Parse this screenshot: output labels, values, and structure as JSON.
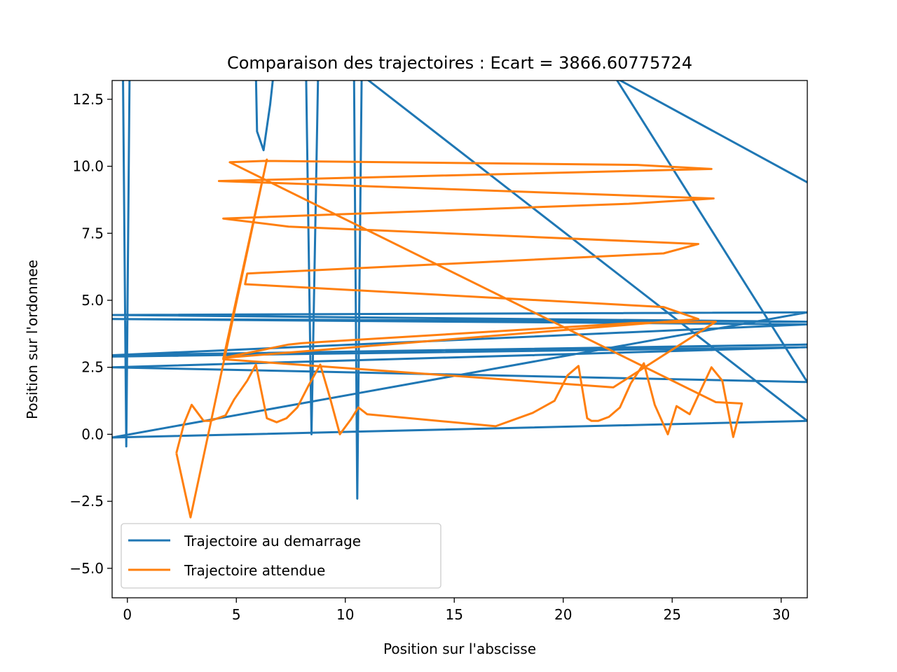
{
  "chart_data": {
    "type": "line",
    "title": "Comparaison des trajectoires : Ecart =  3866.60775724",
    "xlabel": "Position sur l'abscisse",
    "ylabel": "Position sur l'ordonnee",
    "xlim": [
      -0.7,
      31.2
    ],
    "ylim": [
      -6.1,
      13.2
    ],
    "xticks": [
      0,
      5,
      10,
      15,
      20,
      25,
      30
    ],
    "xtick_labels": [
      "0",
      "5",
      "10",
      "15",
      "20",
      "25",
      "30"
    ],
    "yticks": [
      -5.0,
      -2.5,
      0.0,
      2.5,
      5.0,
      7.5,
      10.0,
      12.5
    ],
    "ytick_labels": [
      "−5.0",
      "−2.5",
      "0.0",
      "2.5",
      "5.0",
      "7.5",
      "10.0",
      "12.5"
    ],
    "grid": false,
    "legend_position": "lower-left",
    "series": [
      {
        "name": "Trajectoire au demarrage",
        "color": "#1f77b4",
        "x": [
          -0.2,
          -0.05,
          0.1,
          5.9,
          5.95,
          6.25,
          6.55,
          6.7,
          8.2,
          8.45,
          8.75,
          10.4,
          10.55,
          10.75,
          31.2,
          -0.7,
          31.2,
          -0.7,
          31.2,
          -0.7,
          31.2,
          -0.7,
          31.2,
          -0.7,
          31.2,
          -0.7,
          31.2,
          22.4,
          31.2
        ],
        "y": [
          13.4,
          -0.45,
          13.4,
          13.4,
          11.3,
          10.6,
          12.3,
          13.4,
          13.4,
          0.0,
          13.4,
          13.4,
          -2.4,
          13.4,
          0.5,
          -0.12,
          4.55,
          4.45,
          4.2,
          4.3,
          4.1,
          2.95,
          3.35,
          2.9,
          3.25,
          2.5,
          1.95,
          13.3,
          9.4
        ]
      },
      {
        "name": "Trajectoire attendue",
        "color": "#ff7f0e",
        "x": [
          2.25,
          2.6,
          2.95,
          3.5,
          3.8,
          4.5,
          4.9,
          5.5,
          5.9,
          6.4,
          6.85,
          7.3,
          7.8,
          8.3,
          8.85,
          9.3,
          9.75,
          10.25,
          10.6,
          11.0,
          16.9,
          18.6,
          19.6,
          20.2,
          20.7,
          21.1,
          21.3,
          21.6,
          22.1,
          22.6,
          23.1,
          23.7,
          24.2,
          24.8,
          25.2,
          25.8,
          26.2,
          26.8,
          27.3,
          27.8,
          28.2,
          27.0,
          4.7,
          6.3,
          23.4,
          26.8,
          4.2,
          26.9,
          23.0,
          4.4,
          7.4,
          26.2,
          24.6,
          5.5,
          5.4,
          24.6,
          26.2,
          4.4,
          7.4,
          8.0,
          23.2,
          27.0,
          22.3,
          4.4,
          6.4,
          2.9,
          2.25
        ]
      },
      {
        "name": "",
        "color": "#ff7f0e",
        "y": [
          -0.7,
          0.4,
          1.1,
          0.5,
          0.5,
          0.7,
          1.3,
          2.0,
          2.6,
          0.6,
          0.45,
          0.6,
          1.0,
          1.8,
          2.6,
          1.35,
          0.0,
          0.55,
          1.0,
          0.75,
          0.3,
          0.8,
          1.25,
          2.2,
          2.55,
          0.6,
          0.5,
          0.5,
          0.65,
          1.0,
          1.9,
          2.65,
          1.1,
          0.0,
          1.05,
          0.75,
          1.45,
          2.5,
          2.0,
          -0.1,
          1.15,
          1.2,
          10.15,
          10.2,
          10.05,
          9.9,
          9.45,
          8.8,
          8.6,
          8.05,
          7.75,
          7.1,
          6.75,
          6.0,
          5.6,
          4.75,
          4.3,
          2.85,
          3.35,
          3.4,
          4.15,
          4.2,
          1.75,
          2.8,
          10.25,
          -3.1,
          -0.7
        ]
      }
    ]
  }
}
